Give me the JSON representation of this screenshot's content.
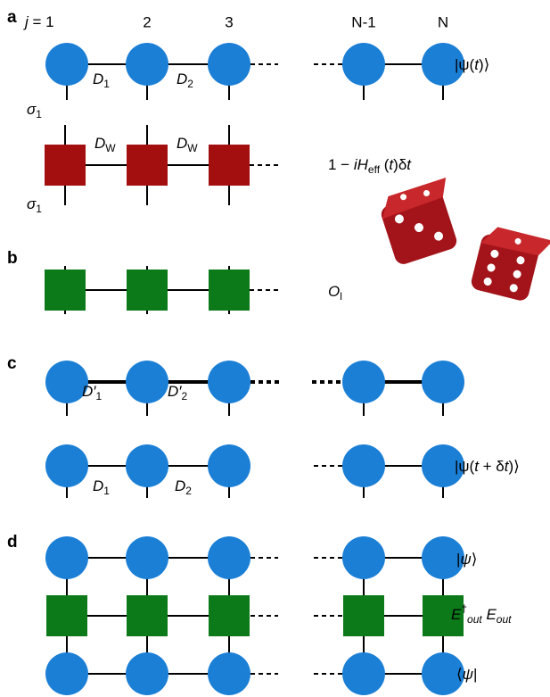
{
  "panel_labels": [
    "a",
    "b",
    "c",
    "d"
  ],
  "site_labels": [
    [
      {
        "text": "j",
        "style": "i"
      },
      {
        "text": " = 1"
      }
    ],
    "2",
    "3",
    "N-1",
    "N"
  ],
  "labels": {
    "psi_t": [
      {
        "text": "|ψ("
      },
      {
        "text": "t",
        "style": "i"
      },
      {
        "text": ")⟩"
      }
    ],
    "a_D1": [
      {
        "text": "D",
        "style": "i"
      },
      {
        "text": "1",
        "style": "sub"
      }
    ],
    "a_D2": [
      {
        "text": "D",
        "style": "i"
      },
      {
        "text": "2",
        "style": "sub"
      }
    ],
    "sigma_top": [
      {
        "text": "σ",
        "style": "i"
      },
      {
        "text": "1",
        "style": "sub"
      }
    ],
    "DW_1": [
      {
        "text": "D",
        "style": "i"
      },
      {
        "text": "W",
        "style": "sub"
      }
    ],
    "DW_2": [
      {
        "text": "D",
        "style": "i"
      },
      {
        "text": "W",
        "style": "sub"
      }
    ],
    "sigma_bottom": [
      {
        "text": "σ",
        "style": "i"
      },
      {
        "text": "1",
        "style": "sub"
      }
    ],
    "propagator": [
      {
        "text": "1 − "
      },
      {
        "text": "iH",
        "style": "i"
      },
      {
        "text": "eff",
        "style": "sub"
      },
      {
        "text": " ("
      },
      {
        "text": "t",
        "style": "i"
      },
      {
        "text": ")δ"
      },
      {
        "text": "t",
        "style": "i"
      }
    ],
    "operator": [
      {
        "text": "O",
        "style": "i"
      },
      {
        "text": "l",
        "style": "sub"
      }
    ],
    "c_D1p": [
      {
        "text": "D′",
        "style": "i"
      },
      {
        "text": "1",
        "style": "sub"
      }
    ],
    "c_D2p": [
      {
        "text": "D′",
        "style": "i"
      },
      {
        "text": "2",
        "style": "sub"
      }
    ],
    "c_D1": [
      {
        "text": "D",
        "style": "i"
      },
      {
        "text": "1",
        "style": "sub"
      }
    ],
    "c_D2": [
      {
        "text": "D",
        "style": "i"
      },
      {
        "text": "2",
        "style": "sub"
      }
    ],
    "psi_t_dt": [
      {
        "text": "|ψ("
      },
      {
        "text": "t",
        "style": "i"
      },
      {
        "text": " + δ"
      },
      {
        "text": "t",
        "style": "i"
      },
      {
        "text": ")⟩"
      }
    ],
    "ket": [
      {
        "text": "|"
      },
      {
        "text": "ψ",
        "style": "i"
      },
      {
        "text": "⟩"
      }
    ],
    "environment": [
      {
        "text": "E",
        "style": "i"
      },
      {
        "text": "†",
        "style": "sup"
      },
      {
        "text": "out",
        "style": "isub"
      },
      {
        "text": " E",
        "style": "i"
      },
      {
        "text": "out",
        "style": "isub"
      }
    ],
    "bra": [
      {
        "text": "⟨"
      },
      {
        "text": "ψ",
        "style": "i"
      },
      {
        "text": "|"
      }
    ]
  }
}
